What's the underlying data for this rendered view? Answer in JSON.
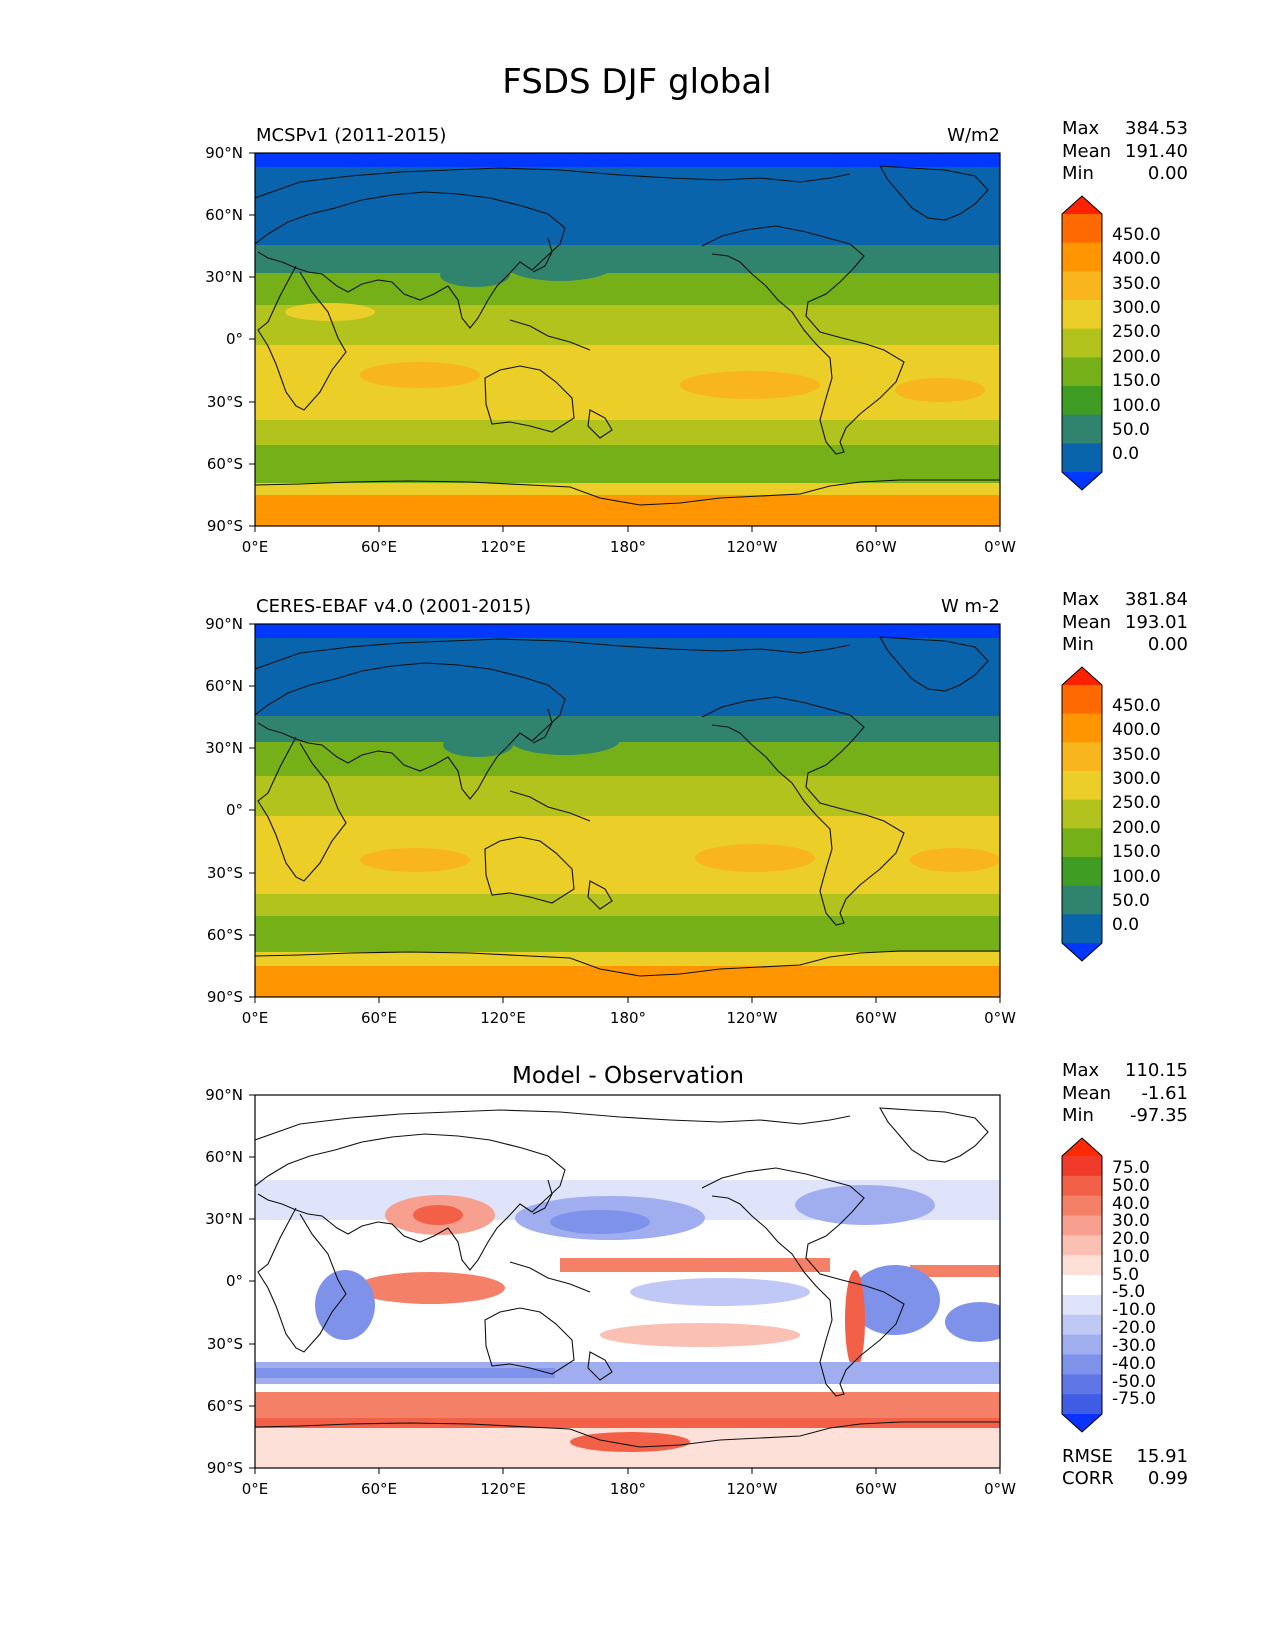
{
  "figure": {
    "title": "FSDS DJF global"
  },
  "axes": {
    "lat_ticks": [
      "90°N",
      "60°N",
      "30°N",
      "0°",
      "30°S",
      "60°S",
      "90°S"
    ],
    "lon_ticks": [
      "0°E",
      "60°E",
      "120°E",
      "180°",
      "120°W",
      "60°W",
      "0°W"
    ]
  },
  "panels": [
    {
      "id": "model",
      "left_label": "MCSPv1 (2011-2015)",
      "center_label": "",
      "units": "W/m2",
      "stats": [
        {
          "label": "Max",
          "value": "384.53"
        },
        {
          "label": "Mean",
          "value": "191.40"
        },
        {
          "label": "Min",
          "value": "0.00"
        }
      ],
      "extra_stats": [],
      "colorbar_labels": [
        "450.0",
        "400.0",
        "350.0",
        "300.0",
        "250.0",
        "200.0",
        "150.0",
        "100.0",
        "50.0",
        "0.0"
      ],
      "colorbar_colors": [
        "#ff2200",
        "#ff6a00",
        "#ff9500",
        "#f8b51e",
        "#ecce28",
        "#b2c31e",
        "#76b018",
        "#3e9c22",
        "#30846e",
        "#0a64ac",
        "#0038ff"
      ]
    },
    {
      "id": "obs",
      "left_label": "CERES-EBAF v4.0 (2001-2015)",
      "center_label": "",
      "units": "W m-2",
      "stats": [
        {
          "label": "Max",
          "value": "381.84"
        },
        {
          "label": "Mean",
          "value": "193.01"
        },
        {
          "label": "Min",
          "value": "0.00"
        }
      ],
      "extra_stats": [],
      "colorbar_labels": [
        "450.0",
        "400.0",
        "350.0",
        "300.0",
        "250.0",
        "200.0",
        "150.0",
        "100.0",
        "50.0",
        "0.0"
      ],
      "colorbar_colors": [
        "#ff2200",
        "#ff6a00",
        "#ff9500",
        "#f8b51e",
        "#ecce28",
        "#b2c31e",
        "#76b018",
        "#3e9c22",
        "#30846e",
        "#0a64ac",
        "#0038ff"
      ]
    },
    {
      "id": "diff",
      "left_label": "",
      "center_label": "Model - Observation",
      "units": "",
      "stats": [
        {
          "label": "Max",
          "value": "110.15"
        },
        {
          "label": "Mean",
          "value": "-1.61"
        },
        {
          "label": "Min",
          "value": "-97.35"
        }
      ],
      "extra_stats": [
        {
          "label": "RMSE",
          "value": "15.91"
        },
        {
          "label": "CORR",
          "value": "0.99"
        }
      ],
      "colorbar_labels": [
        "75.0",
        "50.0",
        "40.0",
        "30.0",
        "20.0",
        "10.0",
        "5.0",
        "-5.0",
        "-10.0",
        "-20.0",
        "-30.0",
        "-40.0",
        "-50.0",
        "-75.0"
      ],
      "colorbar_colors": [
        "#ff2a00",
        "#f03a2a",
        "#f26048",
        "#f58068",
        "#f8a090",
        "#fac0b4",
        "#fde0d8",
        "#ffffff",
        "#dfe4fa",
        "#c0c9f6",
        "#a0aef0",
        "#7f92ea",
        "#5f77e6",
        "#3f5ce4",
        "#0a32ff"
      ]
    }
  ]
}
